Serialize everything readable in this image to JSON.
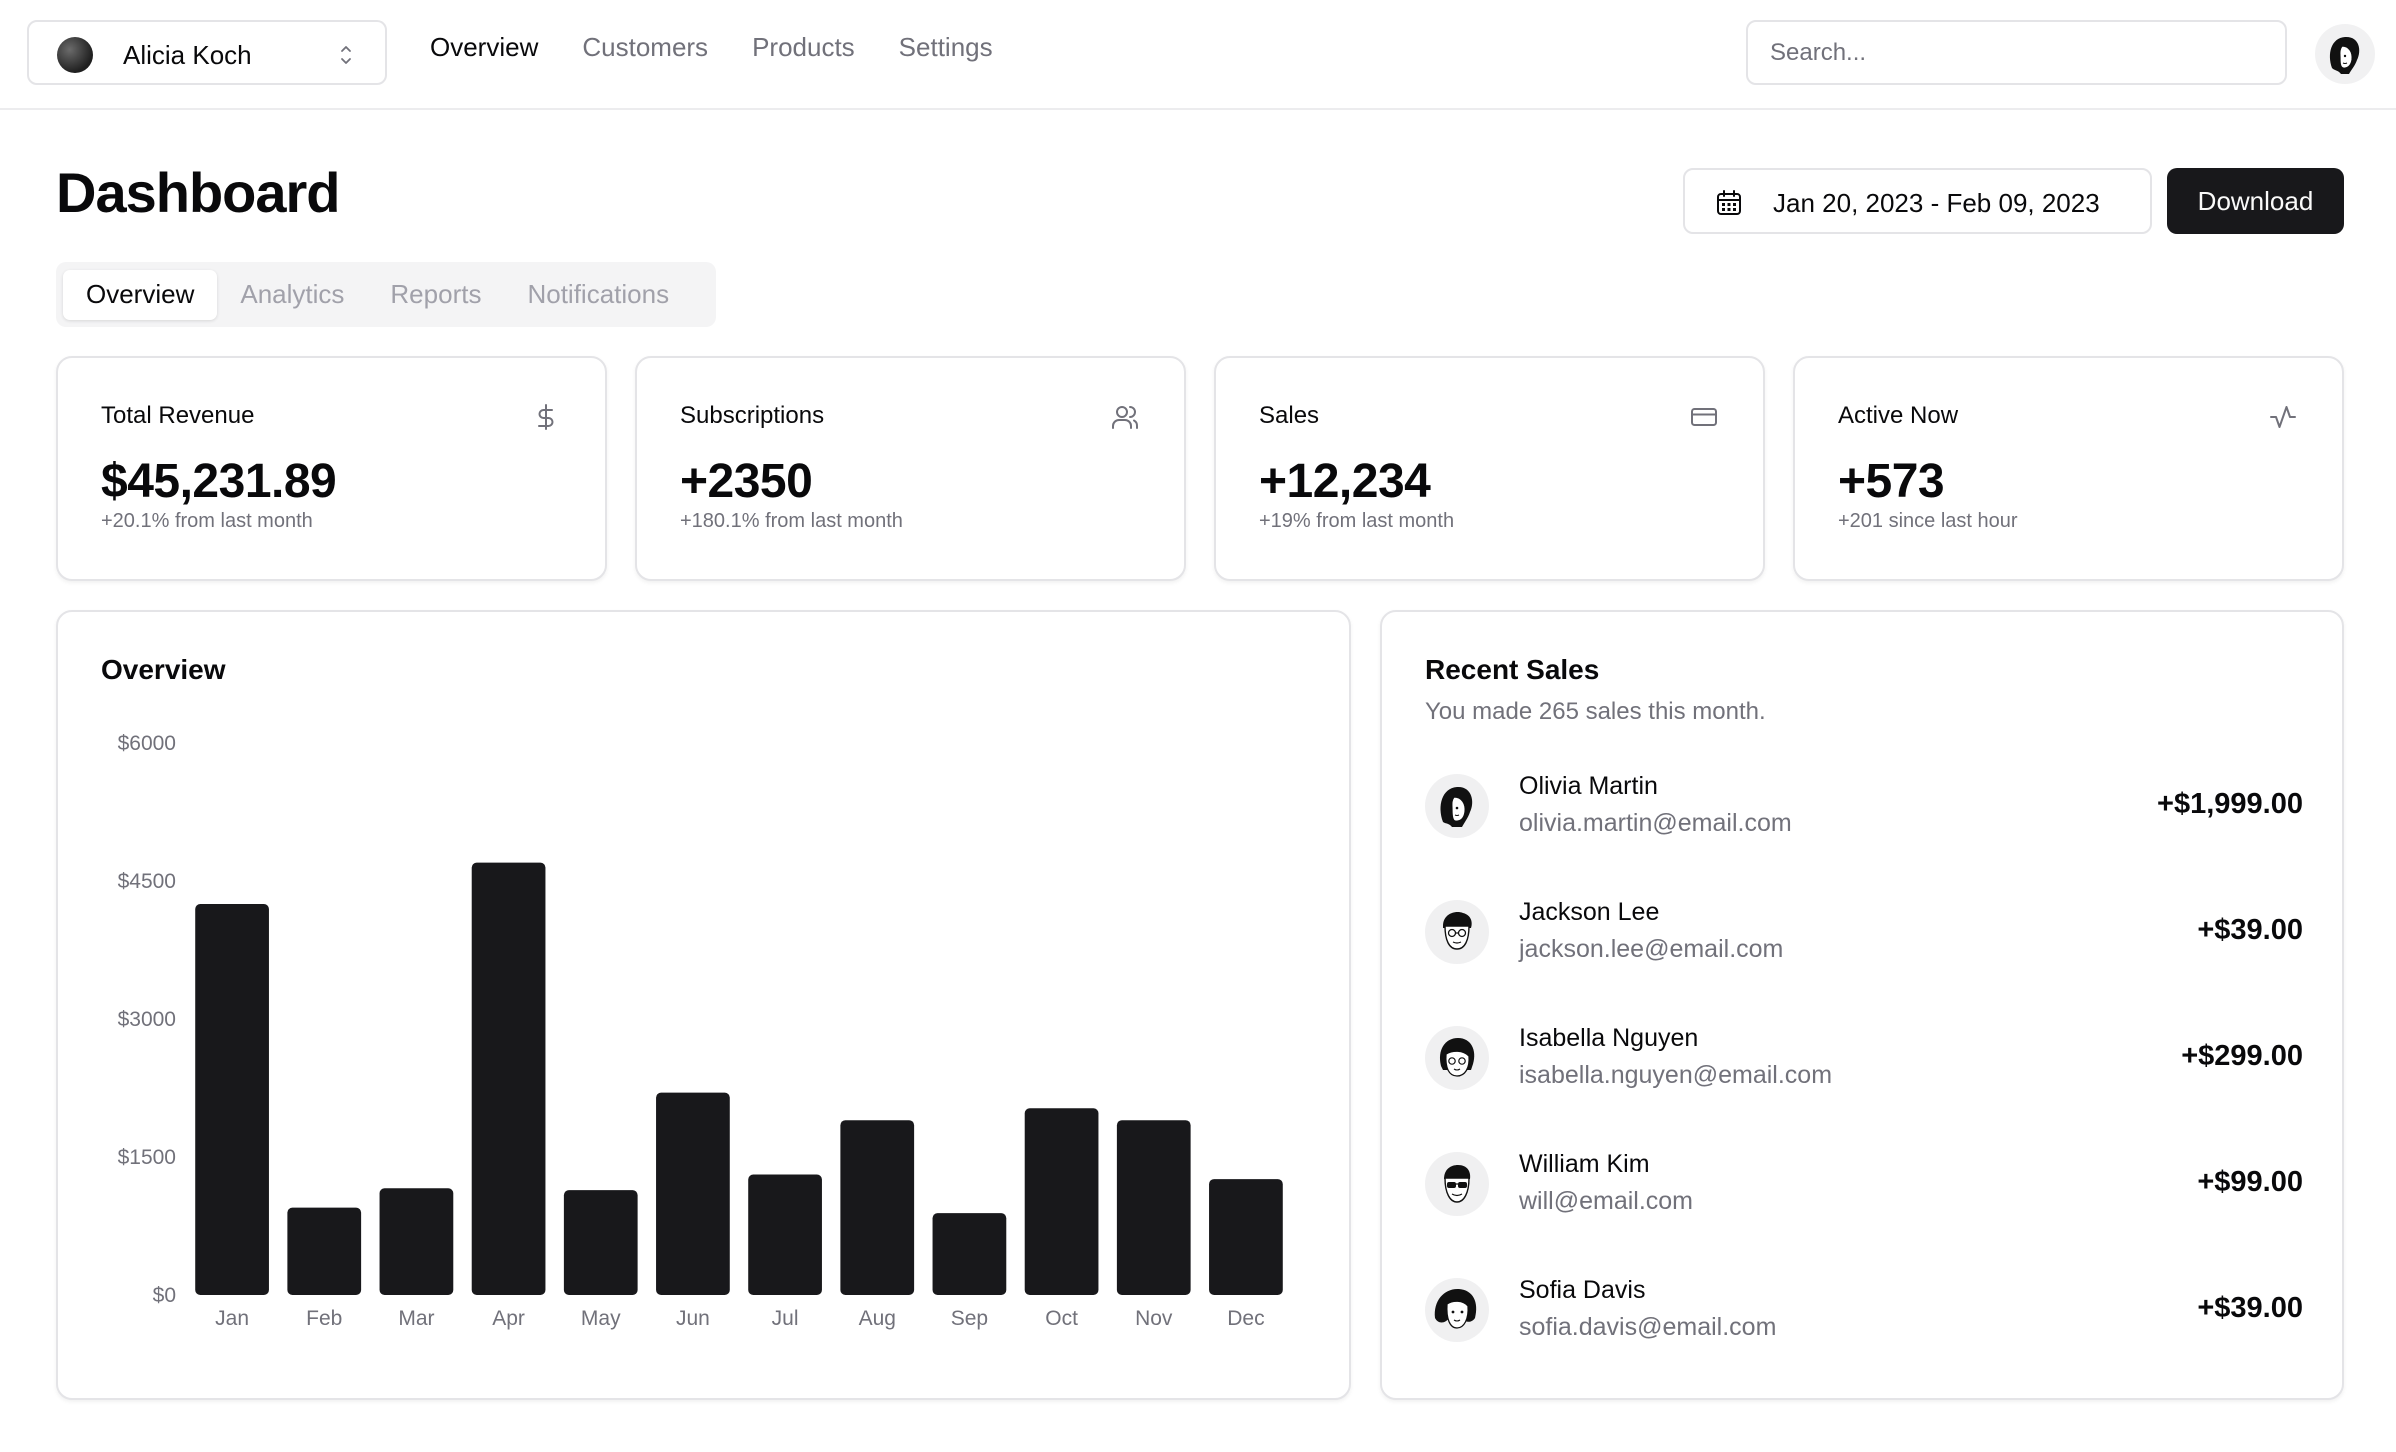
{
  "team": {
    "name": "Alicia Koch"
  },
  "nav": {
    "items": [
      "Overview",
      "Customers",
      "Products",
      "Settings"
    ],
    "active": "Overview"
  },
  "search": {
    "placeholder": "Search..."
  },
  "header": {
    "title": "Dashboard",
    "date_range": "Jan 20, 2023 - Feb 09, 2023",
    "download_label": "Download"
  },
  "tabs": {
    "items": [
      "Overview",
      "Analytics",
      "Reports",
      "Notifications"
    ],
    "active": "Overview"
  },
  "stats": [
    {
      "title": "Total Revenue",
      "value": "$45,231.89",
      "sub": "+20.1% from last month",
      "icon": "dollar-icon"
    },
    {
      "title": "Subscriptions",
      "value": "+2350",
      "sub": "+180.1% from last month",
      "icon": "users-icon"
    },
    {
      "title": "Sales",
      "value": "+12,234",
      "sub": "+19% from last month",
      "icon": "credit-card-icon"
    },
    {
      "title": "Active Now",
      "value": "+573",
      "sub": "+201 since last hour",
      "icon": "activity-icon"
    }
  ],
  "overview": {
    "title": "Overview"
  },
  "chart_data": {
    "type": "bar",
    "categories": [
      "Jan",
      "Feb",
      "Mar",
      "Apr",
      "May",
      "Jun",
      "Jul",
      "Aug",
      "Sep",
      "Oct",
      "Nov",
      "Dec"
    ],
    "values": [
      4250,
      950,
      1160,
      4700,
      1140,
      2200,
      1310,
      1900,
      890,
      2030,
      1900,
      1260
    ],
    "yticks": [
      "$0",
      "$1500",
      "$3000",
      "$4500",
      "$6000"
    ],
    "ylim": [
      0,
      6000
    ],
    "bar_color": "#18181b",
    "grid": false,
    "title": "Overview"
  },
  "recent_sales": {
    "title": "Recent Sales",
    "subtitle": "You made 265 sales this month.",
    "rows": [
      {
        "name": "Olivia Martin",
        "email": "olivia.martin@email.com",
        "amount": "+$1,999.00"
      },
      {
        "name": "Jackson Lee",
        "email": "jackson.lee@email.com",
        "amount": "+$39.00"
      },
      {
        "name": "Isabella Nguyen",
        "email": "isabella.nguyen@email.com",
        "amount": "+$299.00"
      },
      {
        "name": "William Kim",
        "email": "will@email.com",
        "amount": "+$99.00"
      },
      {
        "name": "Sofia Davis",
        "email": "sofia.davis@email.com",
        "amount": "+$39.00"
      }
    ]
  },
  "colors": {
    "primary": "#18181b",
    "muted": "#71717a",
    "border": "#e4e4e7",
    "tab_bg": "#f4f4f5"
  }
}
